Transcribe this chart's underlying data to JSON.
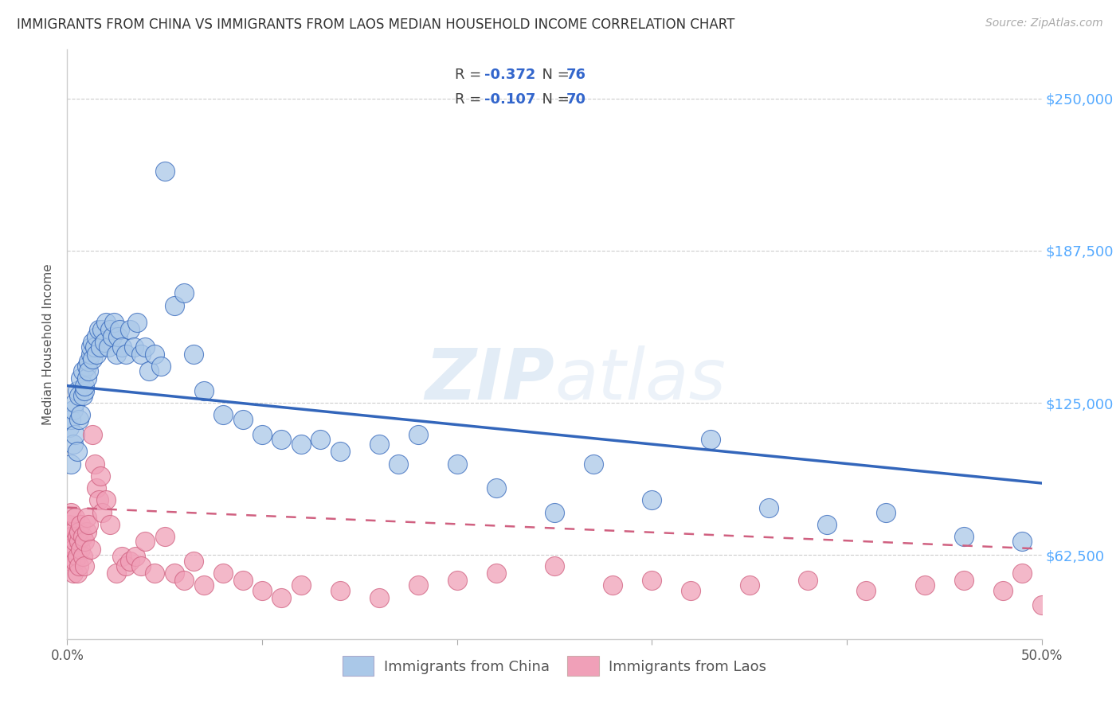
{
  "title": "IMMIGRANTS FROM CHINA VS IMMIGRANTS FROM LAOS MEDIAN HOUSEHOLD INCOME CORRELATION CHART",
  "source": "Source: ZipAtlas.com",
  "ylabel": "Median Household Income",
  "yticks": [
    62500,
    125000,
    187500,
    250000
  ],
  "ytick_labels": [
    "$62,500",
    "$125,000",
    "$187,500",
    "$250,000"
  ],
  "xlim": [
    0.0,
    0.5
  ],
  "ylim": [
    28000,
    270000
  ],
  "china_color": "#aac8e8",
  "china_line_color": "#3366bb",
  "laos_color": "#f0a0b8",
  "laos_line_color": "#d06080",
  "legend_china_label": "Immigrants from China",
  "legend_laos_label": "Immigrants from Laos",
  "watermark_zip": "ZIP",
  "watermark_atlas": "atlas",
  "background_color": "#ffffff",
  "grid_color": "#cccccc",
  "china_x": [
    0.001,
    0.002,
    0.002,
    0.003,
    0.003,
    0.004,
    0.004,
    0.005,
    0.005,
    0.006,
    0.006,
    0.007,
    0.007,
    0.008,
    0.008,
    0.009,
    0.009,
    0.01,
    0.01,
    0.011,
    0.011,
    0.012,
    0.012,
    0.013,
    0.013,
    0.014,
    0.015,
    0.015,
    0.016,
    0.017,
    0.018,
    0.019,
    0.02,
    0.021,
    0.022,
    0.023,
    0.024,
    0.025,
    0.026,
    0.027,
    0.028,
    0.03,
    0.032,
    0.034,
    0.036,
    0.038,
    0.04,
    0.042,
    0.045,
    0.048,
    0.05,
    0.055,
    0.06,
    0.065,
    0.07,
    0.08,
    0.09,
    0.1,
    0.11,
    0.12,
    0.13,
    0.14,
    0.16,
    0.17,
    0.18,
    0.2,
    0.22,
    0.25,
    0.27,
    0.3,
    0.33,
    0.36,
    0.39,
    0.42,
    0.46,
    0.49
  ],
  "china_y": [
    115000,
    100000,
    118000,
    108000,
    122000,
    112000,
    125000,
    105000,
    130000,
    118000,
    128000,
    120000,
    135000,
    128000,
    138000,
    130000,
    132000,
    140000,
    135000,
    142000,
    138000,
    145000,
    148000,
    143000,
    150000,
    148000,
    152000,
    145000,
    155000,
    148000,
    155000,
    150000,
    158000,
    148000,
    155000,
    152000,
    158000,
    145000,
    152000,
    155000,
    148000,
    145000,
    155000,
    148000,
    158000,
    145000,
    148000,
    138000,
    145000,
    140000,
    220000,
    165000,
    170000,
    145000,
    130000,
    120000,
    118000,
    112000,
    110000,
    108000,
    110000,
    105000,
    108000,
    100000,
    112000,
    100000,
    90000,
    80000,
    100000,
    85000,
    110000,
    82000,
    75000,
    80000,
    70000,
    68000
  ],
  "laos_x": [
    0.001,
    0.001,
    0.002,
    0.002,
    0.002,
    0.003,
    0.003,
    0.003,
    0.004,
    0.004,
    0.004,
    0.005,
    0.005,
    0.005,
    0.006,
    0.006,
    0.006,
    0.007,
    0.007,
    0.008,
    0.008,
    0.009,
    0.009,
    0.01,
    0.01,
    0.011,
    0.012,
    0.013,
    0.014,
    0.015,
    0.016,
    0.017,
    0.018,
    0.02,
    0.022,
    0.025,
    0.028,
    0.03,
    0.032,
    0.035,
    0.038,
    0.04,
    0.045,
    0.05,
    0.055,
    0.06,
    0.065,
    0.07,
    0.08,
    0.09,
    0.1,
    0.11,
    0.12,
    0.14,
    0.16,
    0.18,
    0.2,
    0.22,
    0.25,
    0.28,
    0.3,
    0.32,
    0.35,
    0.38,
    0.41,
    0.44,
    0.46,
    0.48,
    0.49,
    0.5
  ],
  "laos_y": [
    65000,
    75000,
    70000,
    60000,
    80000,
    65000,
    72000,
    55000,
    68000,
    60000,
    78000,
    70000,
    62000,
    55000,
    68000,
    72000,
    58000,
    65000,
    75000,
    70000,
    62000,
    68000,
    58000,
    72000,
    78000,
    75000,
    65000,
    112000,
    100000,
    90000,
    85000,
    95000,
    80000,
    85000,
    75000,
    55000,
    62000,
    58000,
    60000,
    62000,
    58000,
    68000,
    55000,
    70000,
    55000,
    52000,
    60000,
    50000,
    55000,
    52000,
    48000,
    45000,
    50000,
    48000,
    45000,
    50000,
    52000,
    55000,
    58000,
    50000,
    52000,
    48000,
    50000,
    52000,
    48000,
    50000,
    52000,
    48000,
    55000,
    42000
  ]
}
